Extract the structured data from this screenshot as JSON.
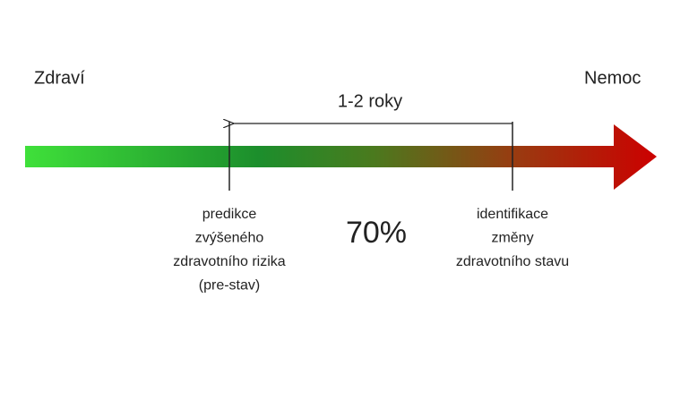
{
  "ends": {
    "left": "Zdraví",
    "right": "Nemoc"
  },
  "interval": "1-2 roky",
  "center": "70%",
  "markers": [
    {
      "lines": [
        "predikce",
        "zvýšeného",
        "zdravotního rizika",
        "(pre-stav)"
      ]
    },
    {
      "lines": [
        "identifikace",
        "změny",
        "zdravotního stavu"
      ]
    }
  ]
}
